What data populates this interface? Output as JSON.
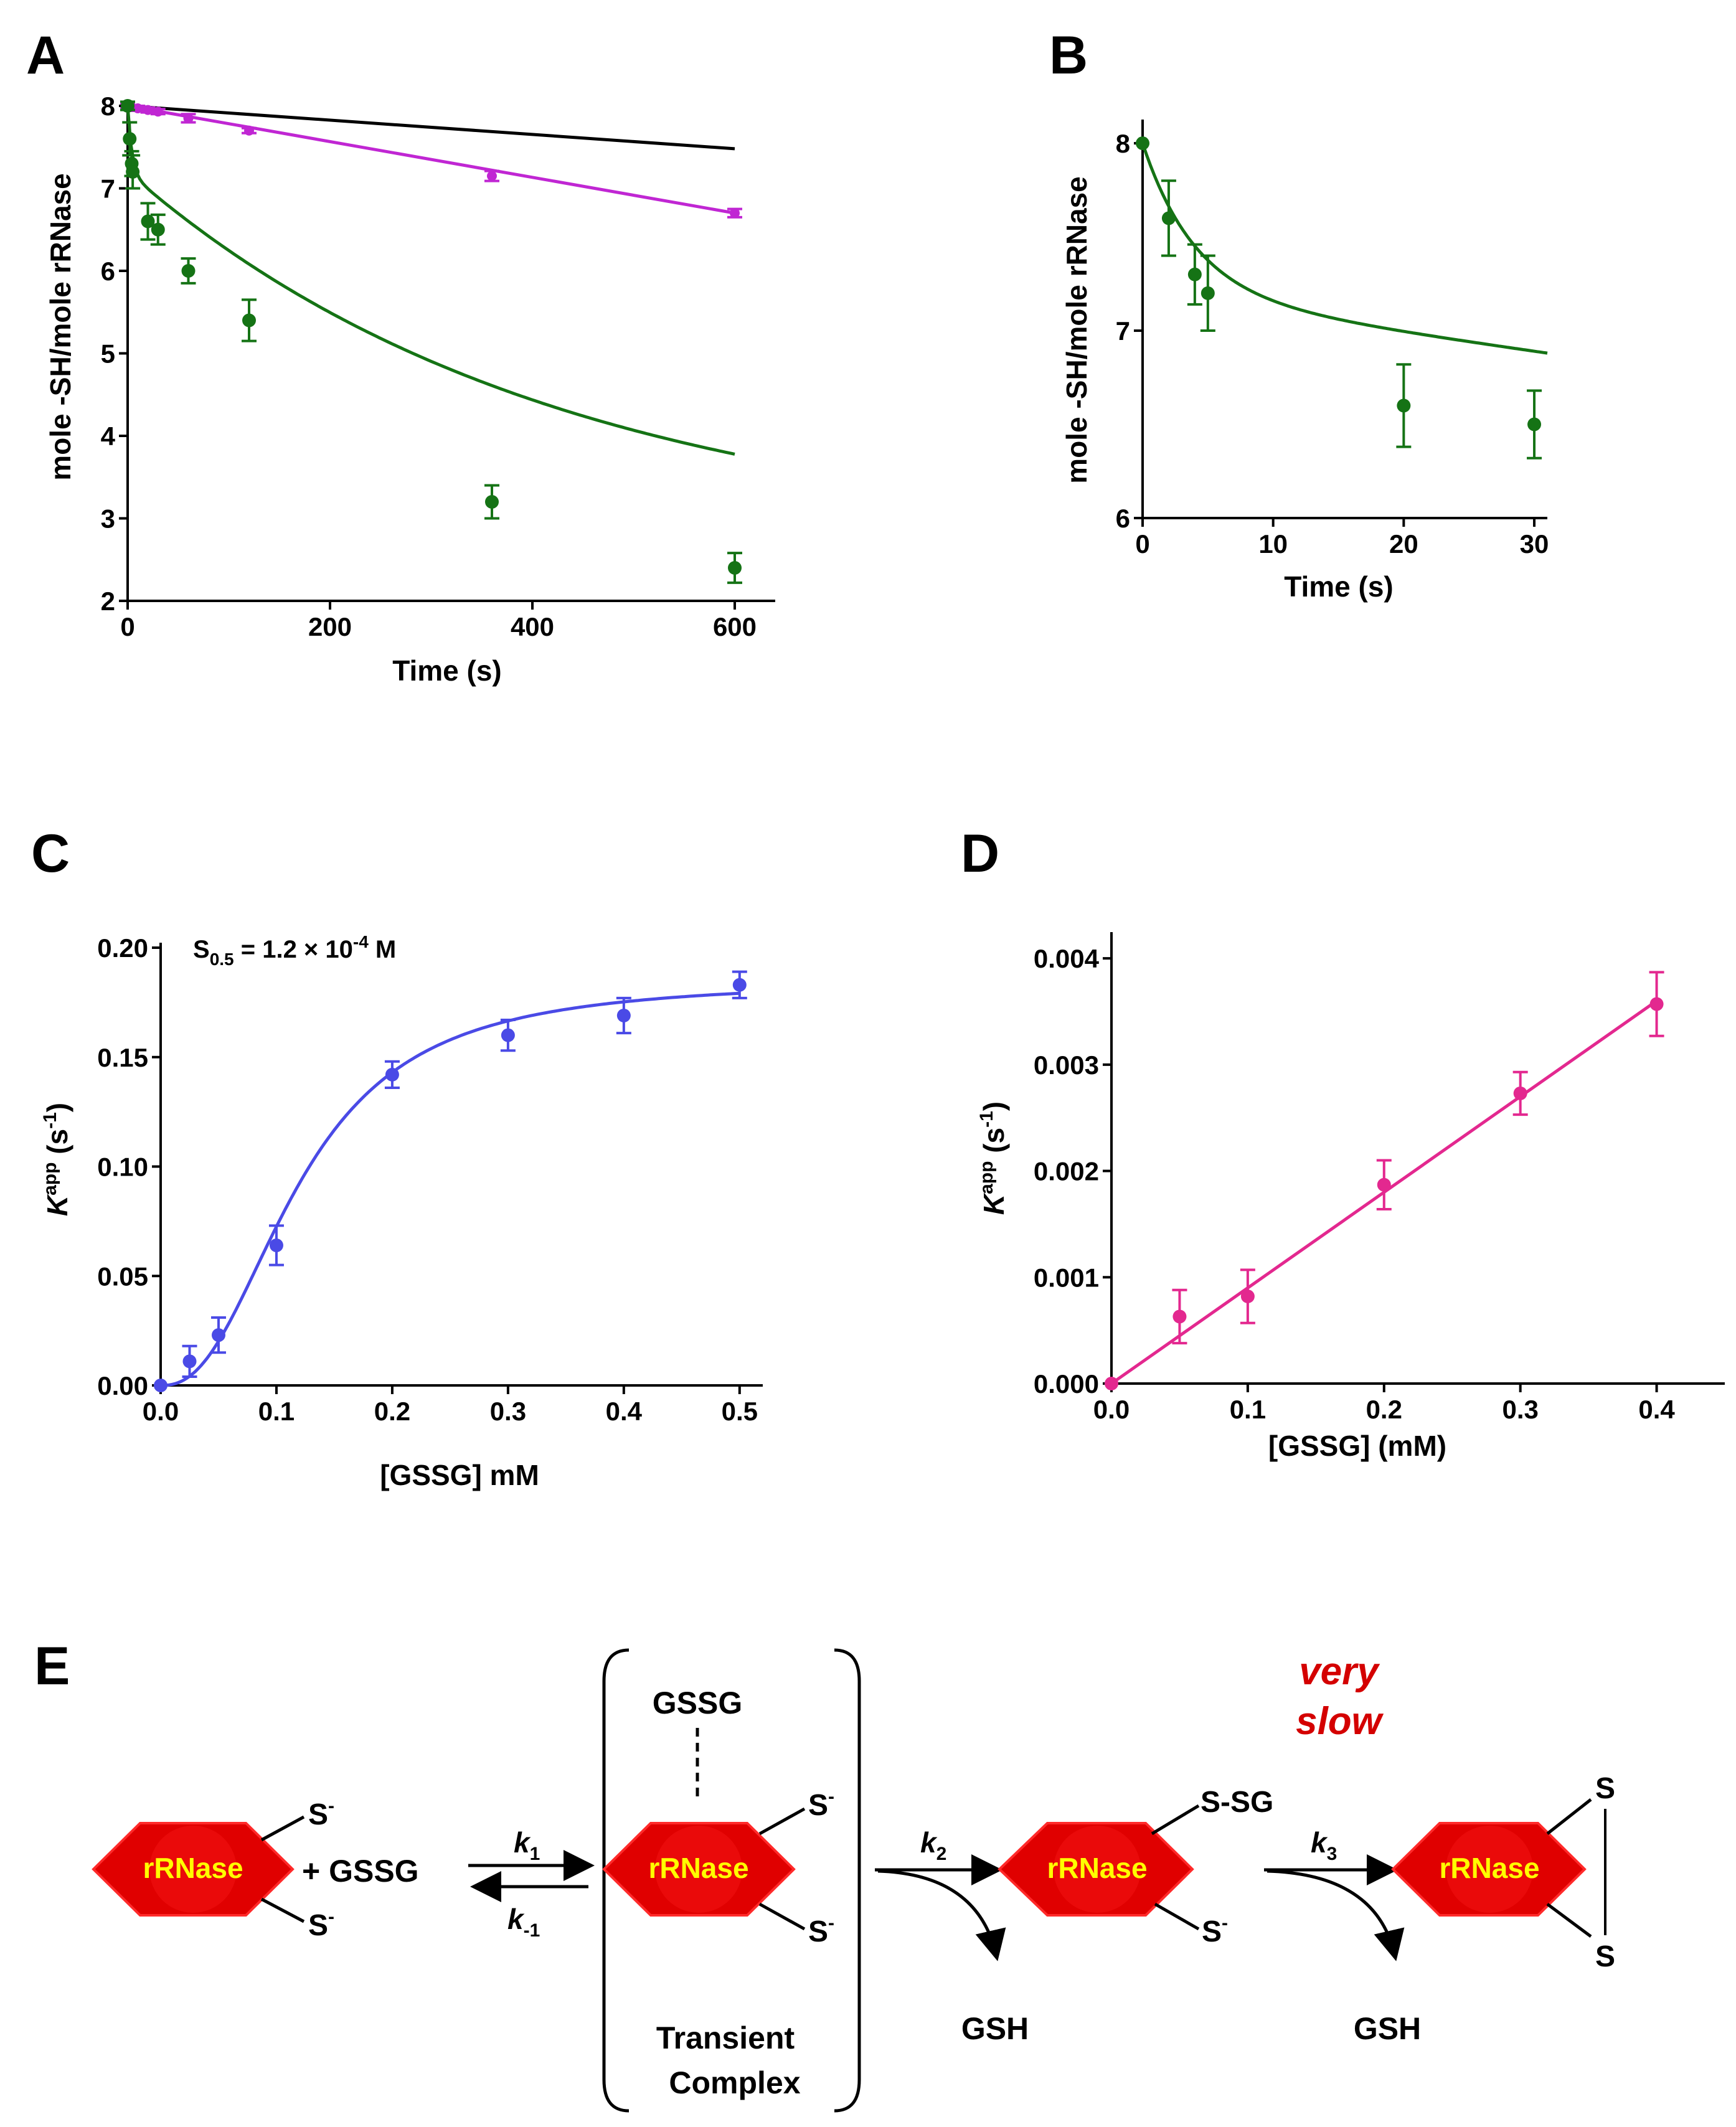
{
  "panels": {
    "A": {
      "letter": "A",
      "xlabel": "Time (s)",
      "ylabel": "mole -SH/mole rRNase",
      "xticks": [
        "0",
        "200",
        "400",
        "600"
      ],
      "yticks": [
        "2",
        "3",
        "4",
        "5",
        "6",
        "7",
        "8"
      ]
    },
    "B": {
      "letter": "B",
      "xlabel": "Time (s)",
      "ylabel": "mole -SH/mole rRNase",
      "xticks": [
        "0",
        "10",
        "20",
        "30"
      ],
      "yticks": [
        "6",
        "7",
        "8"
      ]
    },
    "C": {
      "letter": "C",
      "xlabel": "[GSSG] mM",
      "ylabel_main": "K",
      "ylabel_sup": "app",
      "ylabel_unit": " (s",
      "ylabel_unit_sup": "-1",
      "ylabel_close": ")",
      "xticks": [
        "0.0",
        "0.1",
        "0.2",
        "0.3",
        "0.4",
        "0.5"
      ],
      "yticks": [
        "0.00",
        "0.05",
        "0.10",
        "0.15",
        "0.20"
      ],
      "annotation": {
        "s": "S",
        "sub": "0.5",
        "eq": " = 1.2 × 10",
        "sup": "-4",
        "unit": " M"
      }
    },
    "D": {
      "letter": "D",
      "xlabel": "[GSSG] (mM)",
      "ylabel_main": "K",
      "ylabel_sup": "app",
      "ylabel_unit": " (s",
      "ylabel_unit_sup": "-1",
      "ylabel_close": ")",
      "xticks": [
        "0.0",
        "0.1",
        "0.2",
        "0.3",
        "0.4"
      ],
      "yticks": [
        "0.000",
        "0.001",
        "0.002",
        "0.003",
        "0.004"
      ]
    },
    "E": {
      "letter": "E"
    }
  },
  "chart_data": [
    {
      "panel": "A",
      "type": "scatter",
      "xlabel": "Time (s)",
      "ylabel": "mole -SH/mole rRNase",
      "xlim": [
        0,
        640
      ],
      "ylim": [
        2,
        8
      ],
      "series": [
        {
          "color": "#000000",
          "points": [],
          "line": [
            [
              0,
              8.0
            ],
            [
              600,
              7.48
            ]
          ]
        },
        {
          "color": "#c026d3",
          "points": [
            [
              0,
              8.0
            ],
            [
              10,
              7.97
            ],
            [
              20,
              7.95
            ],
            [
              30,
              7.93
            ],
            [
              60,
              7.85
            ],
            [
              120,
              7.7
            ],
            [
              360,
              7.15
            ],
            [
              600,
              6.7
            ]
          ],
          "errors": [
            0.03,
            0.03,
            0.03,
            0.03,
            0.05,
            0.03,
            0.06,
            0.05
          ],
          "line": [
            [
              0,
              8.0
            ],
            [
              600,
              6.7
            ]
          ]
        },
        {
          "color": "#157315",
          "points": [
            [
              0,
              8.0
            ],
            [
              2,
              7.6
            ],
            [
              4,
              7.3
            ],
            [
              5,
              7.2
            ],
            [
              20,
              6.6
            ],
            [
              30,
              6.5
            ],
            [
              60,
              6.0
            ],
            [
              120,
              5.4
            ],
            [
              360,
              3.2
            ],
            [
              600,
              2.4
            ]
          ],
          "errors": [
            0.05,
            0.2,
            0.15,
            0.2,
            0.22,
            0.18,
            0.15,
            0.25,
            0.2,
            0.18
          ],
          "fit": "0.8*exp(-x/4)+4.5*exp(-x/420)+2.7"
        }
      ]
    },
    {
      "panel": "B",
      "type": "scatter",
      "xlabel": "Time (s)",
      "ylabel": "mole -SH/mole rRNase",
      "xlim": [
        0,
        31
      ],
      "ylim": [
        6,
        8.1
      ],
      "series": [
        {
          "color": "#157315",
          "points": [
            [
              0,
              8.0
            ],
            [
              2,
              7.6
            ],
            [
              4,
              7.3
            ],
            [
              5,
              7.2
            ],
            [
              20,
              6.6
            ],
            [
              30,
              6.5
            ]
          ],
          "errors": [
            0,
            0.2,
            0.16,
            0.2,
            0.22,
            0.18
          ],
          "fit": "0.8*exp(-x/4)+4.5*exp(-x/420)+2.7"
        }
      ]
    },
    {
      "panel": "C",
      "type": "scatter",
      "xlabel": "[GSSG] mM",
      "ylabel": "Kapp (s-1)",
      "xlim": [
        0,
        0.52
      ],
      "ylim": [
        0,
        0.2
      ],
      "series": [
        {
          "color": "#4a4ae6",
          "points": [
            [
              0,
              0
            ],
            [
              0.025,
              0.011
            ],
            [
              0.05,
              0.023
            ],
            [
              0.1,
              0.064
            ],
            [
              0.2,
              0.142
            ],
            [
              0.3,
              0.16
            ],
            [
              0.4,
              0.169
            ],
            [
              0.5,
              0.183
            ]
          ],
          "errors": [
            0,
            0.007,
            0.008,
            0.009,
            0.006,
            0.007,
            0.008,
            0.006
          ],
          "fit": "0.185*x^2.4/(0.12^2.4+x^2.4)"
        }
      ]
    },
    {
      "panel": "D",
      "type": "scatter",
      "xlabel": "[GSSG] (mM)",
      "ylabel": "Kapp (s-1)",
      "xlim": [
        0,
        0.45
      ],
      "ylim": [
        0,
        0.0042
      ],
      "series": [
        {
          "color": "#e3288f",
          "points": [
            [
              0,
              0
            ],
            [
              0.05,
              0.00063
            ],
            [
              0.1,
              0.00082
            ],
            [
              0.2,
              0.00187
            ],
            [
              0.3,
              0.00273
            ],
            [
              0.4,
              0.00357
            ]
          ],
          "errors": [
            0,
            0.00025,
            0.00025,
            0.00023,
            0.0002,
            0.0003
          ],
          "line": [
            [
              0,
              0
            ],
            [
              0.4,
              0.0036
            ]
          ]
        }
      ]
    }
  ],
  "scheme": {
    "enzyme_label": "rRNase",
    "s_minus": "S",
    "minus": "-",
    "plus_gssg": "+ GSSG",
    "k1": "k",
    "k1_sub": "1",
    "km1": "k",
    "km1_sub": "-1",
    "k2": "k",
    "k2_sub": "2",
    "k3": "k",
    "k3_sub": "3",
    "gssg_top": "GSSG",
    "transient_line1": "Transient",
    "transient_line2": "Complex",
    "s_sg": "S-SG",
    "gsh": "GSH",
    "disulfide_s": "S",
    "very": "very",
    "slow": "slow",
    "colors": {
      "hexagon": "#e00000",
      "hexagon_inner": "#f01010",
      "enzyme_text": "#ffff00",
      "very_slow": "#d40000"
    }
  }
}
